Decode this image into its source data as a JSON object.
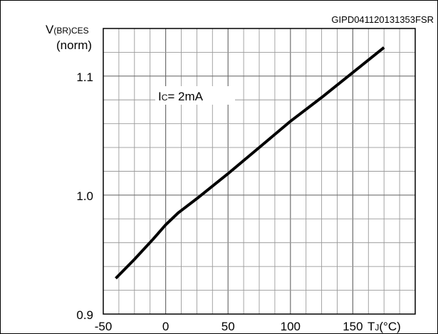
{
  "figure_id": "GIPD041120131353FSR",
  "chart_data": {
    "type": "line",
    "y_label_main": "V",
    "y_label_sub": "(BR)CES",
    "y_label_line2": "(norm)",
    "x_label_main": "T",
    "x_label_sub": "J",
    "x_label_unit": "(°C)",
    "annotation_main": "I",
    "annotation_sub": "C",
    "annotation_value": "= 2mA",
    "xlim": [
      -50,
      200
    ],
    "ylim": [
      0.9,
      1.14
    ],
    "x_ticks": [
      -50,
      0,
      50,
      100,
      150
    ],
    "x_tick_labels": [
      "-50",
      "0",
      "50",
      "100",
      "150"
    ],
    "y_ticks": [
      0.9,
      1.0,
      1.1
    ],
    "y_tick_labels": [
      "0.9",
      "1.0",
      "1.1"
    ],
    "grid": true,
    "series": [
      {
        "color": "#000000",
        "x": [
          -40,
          -25,
          -10,
          0,
          10,
          25,
          50,
          75,
          100,
          125,
          150,
          175
        ],
        "y": [
          0.93,
          0.946,
          0.963,
          0.975,
          0.985,
          0.997,
          1.018,
          1.04,
          1.062,
          1.082,
          1.103,
          1.124
        ]
      }
    ]
  }
}
